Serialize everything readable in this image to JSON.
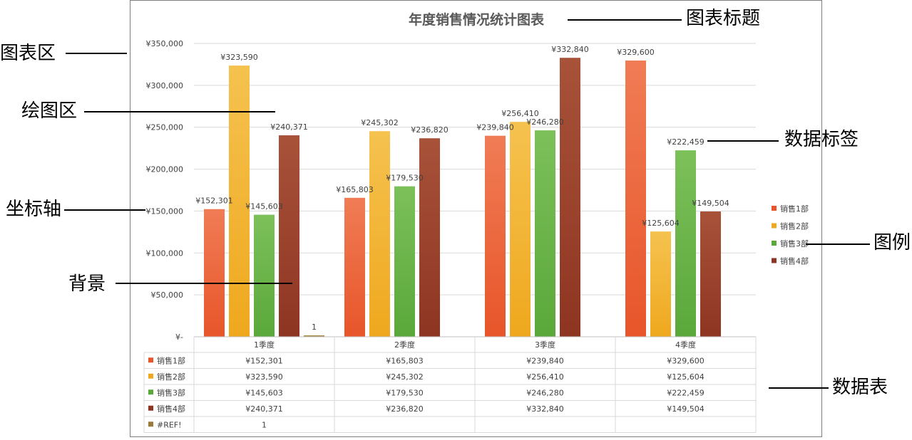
{
  "chart_data": {
    "type": "bar",
    "title": "年度销售情况统计图表",
    "categories": [
      "1季度",
      "2季度",
      "3季度",
      "4季度"
    ],
    "ylim": [
      0,
      350000
    ],
    "yticks": [
      {
        "value": 0,
        "label": "¥-"
      },
      {
        "value": 50000,
        "label": "¥50,000"
      },
      {
        "value": 100000,
        "label": "¥100,000"
      },
      {
        "value": 150000,
        "label": "¥150,000"
      },
      {
        "value": 200000,
        "label": "¥200,000"
      },
      {
        "value": 250000,
        "label": "¥250,000"
      },
      {
        "value": 300000,
        "label": "¥300,000"
      },
      {
        "value": 350000,
        "label": "¥350,000"
      }
    ],
    "grid": true,
    "legend_position": "right",
    "series": [
      {
        "name": "销售1部",
        "color": "#e8552a",
        "color_light": "#f07c55",
        "values": [
          152301,
          165803,
          239840,
          329600
        ],
        "labels": [
          "¥152,301",
          "¥165,803",
          "¥239,840",
          "¥329,600"
        ]
      },
      {
        "name": "销售2部",
        "color": "#efa81e",
        "color_light": "#f5c24f",
        "values": [
          323590,
          245302,
          256410,
          125604
        ],
        "labels": [
          "¥323,590",
          "¥245,302",
          "¥256,410",
          "¥125,604"
        ]
      },
      {
        "name": "销售3部",
        "color": "#5aa83a",
        "color_light": "#7cc05a",
        "values": [
          145603,
          179530,
          246280,
          222459
        ],
        "labels": [
          "¥145,603",
          "¥179,530",
          "¥246,280",
          "¥222,459"
        ]
      },
      {
        "name": "销售4部",
        "color": "#8e3521",
        "color_light": "#a8523a",
        "values": [
          240371,
          236820,
          332840,
          149504
        ],
        "labels": [
          "¥240,371",
          "¥236,820",
          "¥332,840",
          "¥149,504"
        ]
      },
      {
        "name": "#REF!",
        "color": "#9a7b3a",
        "color_light": "#b3944f",
        "values": [
          1,
          null,
          null,
          null
        ],
        "labels": [
          "1",
          "",
          "",
          ""
        ],
        "in_legend": false
      }
    ]
  },
  "callouts": {
    "chart_area": "图表区",
    "plot_area": "绘图区",
    "axis": "坐标轴",
    "background": "背景",
    "chart_title": "图表标题",
    "data_label": "数据标签",
    "legend": "图例",
    "data_table": "数据表"
  }
}
